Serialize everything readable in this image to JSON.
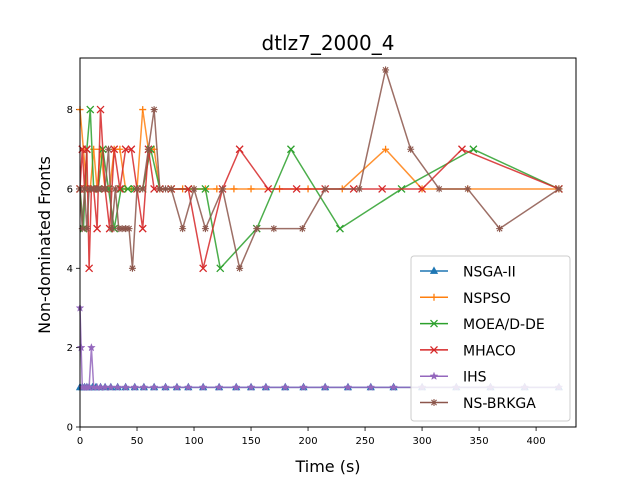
{
  "chart_data": {
    "type": "line",
    "title": "dtlz7_2000_4",
    "xlabel": "Time (s)",
    "ylabel": "Non-dominated Fronts",
    "xlim": [
      0,
      435
    ],
    "ylim": [
      0,
      9.3
    ],
    "xticks": [
      0,
      50,
      100,
      150,
      200,
      250,
      300,
      350,
      400
    ],
    "yticks": [
      0,
      2,
      4,
      6,
      8
    ],
    "grid": false,
    "legend_position": "lower-right",
    "series": [
      {
        "name": "NSGA-II",
        "color": "#1f77b4",
        "marker": "triangle",
        "x": [
          0,
          2,
          4,
          6,
          8,
          11,
          14,
          18,
          22,
          27,
          33,
          40,
          48,
          56,
          65,
          75,
          85,
          95,
          108,
          122,
          137,
          150,
          163,
          180,
          196,
          215,
          235,
          255,
          275,
          300,
          330,
          360,
          390,
          420
        ],
        "y": [
          1,
          1,
          1,
          1,
          1,
          1,
          1,
          1,
          1,
          1,
          1,
          1,
          1,
          1,
          1,
          1,
          1,
          1,
          1,
          1,
          1,
          1,
          1,
          1,
          1,
          1,
          1,
          1,
          1,
          1,
          1,
          1,
          1,
          1
        ]
      },
      {
        "name": "NSPSO",
        "color": "#ff7f0e",
        "marker": "plus",
        "x": [
          0,
          3,
          6,
          9,
          12,
          15,
          18,
          22,
          26,
          30,
          35,
          40,
          45,
          50,
          55,
          60,
          65,
          70,
          80,
          90,
          100,
          110,
          120,
          135,
          150,
          175,
          200,
          230,
          268,
          300,
          340,
          420
        ],
        "y": [
          8,
          7,
          6,
          6,
          7,
          6,
          7,
          6,
          6,
          7,
          7,
          6,
          6,
          6,
          8,
          7,
          7,
          6,
          6,
          6,
          6,
          6,
          6,
          6,
          6,
          6,
          6,
          6,
          7,
          6,
          6,
          6
        ]
      },
      {
        "name": "MOEA/D-DE",
        "color": "#2ca02c",
        "marker": "x",
        "x": [
          0,
          3,
          6,
          9,
          12,
          16,
          20,
          25,
          30,
          36,
          42,
          48,
          55,
          62,
          70,
          80,
          95,
          110,
          123,
          155,
          185,
          228,
          282,
          345,
          420
        ],
        "y": [
          6,
          5,
          7,
          8,
          6,
          6,
          7,
          6,
          5,
          6,
          6,
          6,
          6,
          7,
          6,
          6,
          6,
          6,
          4,
          5,
          7,
          5,
          6,
          7,
          6
        ]
      },
      {
        "name": "MHACO",
        "color": "#d62728",
        "marker": "x",
        "x": [
          0,
          2,
          4,
          6,
          8,
          10,
          12,
          15,
          18,
          22,
          26,
          30,
          35,
          40,
          45,
          50,
          55,
          60,
          65,
          70,
          80,
          95,
          108,
          125,
          140,
          165,
          190,
          215,
          240,
          265,
          300,
          335,
          420
        ],
        "y": [
          6,
          7,
          6,
          7,
          4,
          6,
          6,
          5,
          8,
          6,
          5,
          7,
          6,
          7,
          7,
          6,
          5,
          7,
          6,
          6,
          6,
          6,
          4,
          6,
          7,
          6,
          6,
          6,
          6,
          6,
          6,
          7,
          6
        ]
      },
      {
        "name": "IHS",
        "color": "#9467bd",
        "marker": "star",
        "x": [
          0,
          1,
          2,
          4,
          6,
          8,
          10,
          12,
          15,
          18,
          22,
          27,
          33,
          40,
          48,
          56,
          65,
          75,
          85,
          95,
          108,
          122,
          137,
          150,
          163,
          180,
          196,
          215,
          235,
          255,
          275,
          300,
          330,
          360,
          390,
          420
        ],
        "y": [
          3,
          2,
          1,
          1,
          1,
          1,
          2,
          1,
          1,
          1,
          1,
          1,
          1,
          1,
          1,
          1,
          1,
          1,
          1,
          1,
          1,
          1,
          1,
          1,
          1,
          1,
          1,
          1,
          1,
          1,
          1,
          1,
          1,
          1,
          1,
          1
        ]
      },
      {
        "name": "NS-BRKGA",
        "color": "#8c564b",
        "marker": "asterisk",
        "x": [
          0,
          2,
          4,
          6,
          8,
          10,
          13,
          16,
          19,
          22,
          25,
          28,
          31,
          34,
          37,
          40,
          43,
          46,
          50,
          55,
          60,
          65,
          70,
          75,
          80,
          90,
          100,
          110,
          125,
          140,
          155,
          170,
          195,
          215,
          245,
          268,
          290,
          315,
          340,
          368,
          420
        ],
        "y": [
          6,
          5,
          6,
          5,
          6,
          6,
          6,
          6,
          6,
          6,
          7,
          5,
          6,
          5,
          5,
          5,
          5,
          4,
          6,
          6,
          7,
          8,
          6,
          6,
          6,
          5,
          6,
          5,
          6,
          4,
          5,
          5,
          5,
          6,
          6,
          9,
          7,
          6,
          6,
          5,
          6
        ]
      }
    ]
  }
}
